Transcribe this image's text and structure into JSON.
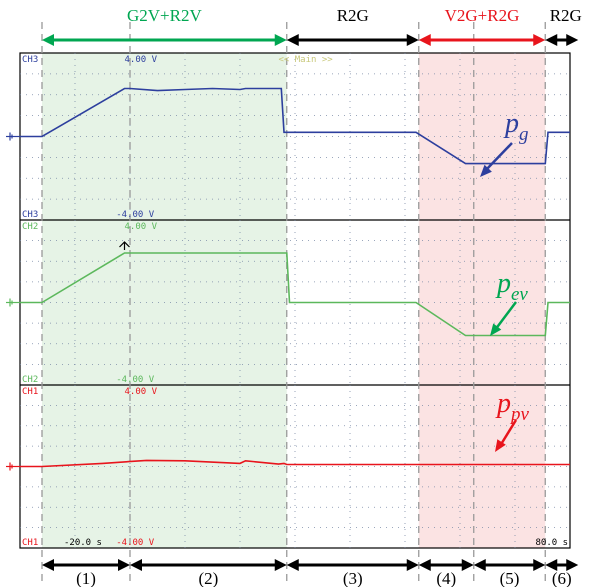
{
  "chart_data": {
    "type": "line",
    "title": "",
    "xlabel": "",
    "ylabel": "",
    "x_range_s": [
      -20.0,
      80.0
    ],
    "x_ticks": {
      "left": "-20.0 s",
      "right": "80.0 s"
    },
    "grid": true,
    "screen_label": "<< Main >>",
    "modes": [
      {
        "label": "G2V+R2V",
        "start": 0,
        "end": 0.41,
        "color": "#00a651"
      },
      {
        "label": "R2G",
        "start": 0.41,
        "end": 0.71,
        "color": "#000000"
      },
      {
        "label": "V2G+R2G",
        "start": 0.71,
        "end": 0.955,
        "color": "#e8141c"
      },
      {
        "label": "R2G",
        "start": 0.955,
        "end": 1.0,
        "color": "#000000"
      }
    ],
    "intervals": [
      {
        "label": "(1)",
        "start": 0,
        "end": 0.17
      },
      {
        "label": "(2)",
        "start": 0.17,
        "end": 0.41
      },
      {
        "label": "(3)",
        "start": 0.41,
        "end": 0.71
      },
      {
        "label": "(4)",
        "start": 0.71,
        "end": 0.81
      },
      {
        "label": "(5)",
        "start": 0.81,
        "end": 0.955
      },
      {
        "label": "(6)",
        "start": 0.955,
        "end": 1.0
      }
    ],
    "shaded_regions": [
      {
        "start": 0.04,
        "end": 0.485,
        "color": "#e6f3e6"
      },
      {
        "start": 0.725,
        "end": 0.955,
        "color": "#fbe3e3"
      }
    ],
    "channels": [
      {
        "name": "CH3",
        "scale_top": "4.00 V",
        "scale_bottom": "-4.00 V",
        "color": "#2d3f9e",
        "label_main": "p",
        "label_sub": "g",
        "label_color": "#2d3f9e",
        "x": [
          0,
          0.04,
          0.19,
          0.2,
          0.25,
          0.3,
          0.35,
          0.4,
          0.41,
          0.475,
          0.48,
          0.485,
          0.72,
          0.81,
          0.955,
          0.96,
          1.0
        ],
        "y": [
          0,
          0,
          2.3,
          2.3,
          2.2,
          2.25,
          2.3,
          2.25,
          2.3,
          2.3,
          0.2,
          0.2,
          0.2,
          -1.3,
          -1.3,
          0.2,
          0.2
        ]
      },
      {
        "name": "CH2",
        "scale_top": "4.00 V",
        "scale_bottom": "-4.00 V",
        "color": "#5cb85c",
        "label_main": "p",
        "label_sub": "ev",
        "label_color": "#00a651",
        "x": [
          0,
          0.04,
          0.19,
          0.2,
          0.485,
          0.49,
          0.72,
          0.81,
          0.955,
          0.96,
          1.0
        ],
        "y": [
          0,
          0,
          2.4,
          2.4,
          2.4,
          0,
          0,
          -1.6,
          -1.6,
          0,
          0
        ]
      },
      {
        "name": "CH1",
        "scale_top": "4.00 V",
        "scale_bottom": "-4.00 V",
        "color": "#e8141c",
        "label_main": "p",
        "label_sub": "pv",
        "label_color": "#e8141c",
        "x": [
          0,
          0.04,
          0.15,
          0.23,
          0.3,
          0.4,
          0.41,
          0.47,
          0.48,
          0.485,
          1.0
        ],
        "y": [
          0,
          0,
          0.15,
          0.3,
          0.28,
          0.15,
          0.28,
          0.12,
          0.15,
          0.1,
          0.1
        ]
      }
    ]
  }
}
